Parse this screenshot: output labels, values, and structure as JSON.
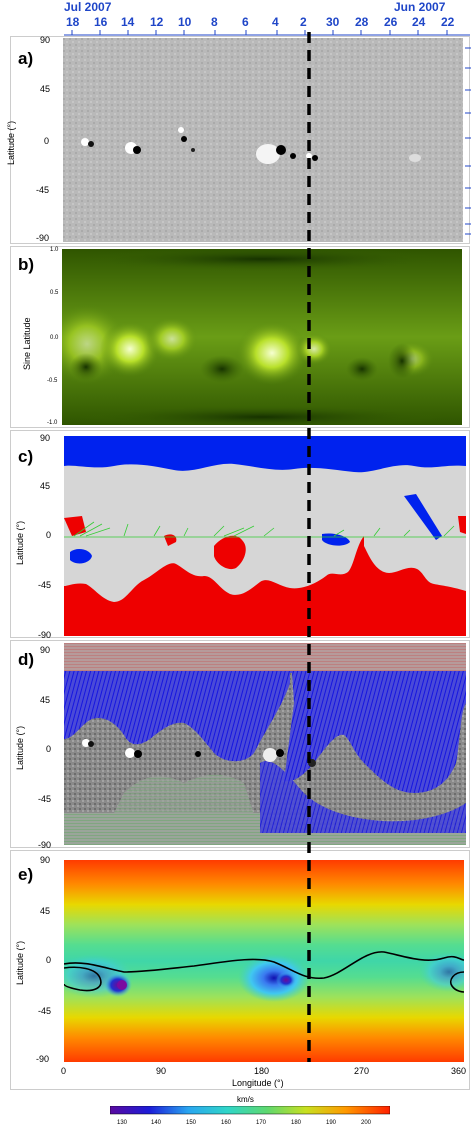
{
  "top_axis": {
    "left_title": "Jul 2007",
    "right_title": "Jun 2007",
    "ticks": [
      "18",
      "16",
      "14",
      "12",
      "10",
      "8",
      "6",
      "4",
      "2",
      "30",
      "28",
      "26",
      "24",
      "22"
    ]
  },
  "panels": {
    "a": {
      "label": "a)",
      "ylabel": "Latitude (°)",
      "yticks": [
        "90",
        "45",
        "0",
        "-45",
        "-90"
      ]
    },
    "b": {
      "label": "b)",
      "ylabel": "Sine Latitude",
      "yticks": [
        "1.0",
        "0.5",
        "0.0",
        "-0.5",
        "-1.0"
      ]
    },
    "c": {
      "label": "c)",
      "ylabel": "Latitude (°)",
      "yticks": [
        "90",
        "45",
        "0",
        "-45",
        "-90"
      ]
    },
    "d": {
      "label": "d)",
      "ylabel": "Latitude (°)",
      "yticks": [
        "90",
        "45",
        "0",
        "-45",
        "-90"
      ]
    },
    "e": {
      "label": "e)",
      "ylabel": "Latitude (°)",
      "yticks": [
        "90",
        "45",
        "0",
        "-45",
        "-90"
      ],
      "xticks": [
        "0",
        "90",
        "180",
        "270",
        "360"
      ],
      "xlabel": "Longitude (°)"
    }
  },
  "colorbar": {
    "unit": "km/s",
    "ticks": [
      "130",
      "140",
      "150",
      "160",
      "170",
      "180",
      "190",
      "200"
    ]
  },
  "colors": {
    "accent_blue": "#1f46c8",
    "coronal_hole_north": "#0022ee",
    "coronal_hole_south": "#ee0000",
    "fieldline_open": "#1515e0",
    "eit_green": "#5a8a10"
  }
}
